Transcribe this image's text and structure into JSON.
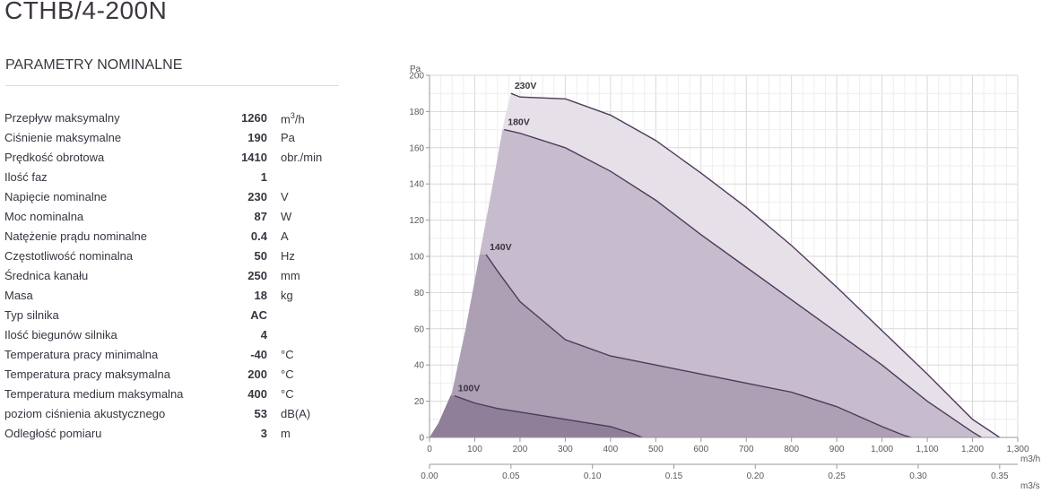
{
  "product": {
    "title": "CTHB/4-200N"
  },
  "section": {
    "title": "PARAMETRY NOMINALNE"
  },
  "params": [
    {
      "label": "Przepływ maksymalny",
      "value": "1260",
      "unit": "m3/h"
    },
    {
      "label": "Ciśnienie maksymalne",
      "value": "190",
      "unit": "Pa"
    },
    {
      "label": "Prędkość obrotowa",
      "value": "1410",
      "unit": "obr./min"
    },
    {
      "label": "Ilość faz",
      "value": "1",
      "unit": ""
    },
    {
      "label": "Napięcie nominalne",
      "value": "230",
      "unit": "V"
    },
    {
      "label": "Moc nominalna",
      "value": "87",
      "unit": "W"
    },
    {
      "label": "Natężenie prądu nominalne",
      "value": "0.4",
      "unit": "A"
    },
    {
      "label": "Częstotliwość nominalna",
      "value": "50",
      "unit": "Hz"
    },
    {
      "label": "Średnica kanału",
      "value": "250",
      "unit": "mm"
    },
    {
      "label": "Masa",
      "value": "18",
      "unit": "kg"
    },
    {
      "label": "Typ silnika",
      "value": "AC",
      "unit": ""
    },
    {
      "label": "Ilość biegunów silnika",
      "value": "4",
      "unit": ""
    },
    {
      "label": "Temperatura pracy minimalna",
      "value": "-40",
      "unit": "°C"
    },
    {
      "label": "Temperatura pracy maksymalna",
      "value": "200",
      "unit": "°C"
    },
    {
      "label": "Temperatura medium maksymalna",
      "value": "400",
      "unit": "°C"
    },
    {
      "label": "poziom ciśnienia akustycznego",
      "value": "53",
      "unit": "dB(A)"
    },
    {
      "label": "Odległość pomiaru",
      "value": "3",
      "unit": "m"
    }
  ],
  "chart_data": {
    "type": "area",
    "ylabel": "Pa",
    "xlabel": "m3/h",
    "x2label": "m3/s",
    "xlim": [
      0,
      1300
    ],
    "ylim": [
      0,
      200
    ],
    "xticks": [
      0,
      100,
      200,
      300,
      400,
      500,
      600,
      700,
      800,
      900,
      1000,
      1100,
      1200,
      1300
    ],
    "xtick_labels": [
      "0",
      "100",
      "200",
      "300",
      "400",
      "500",
      "600",
      "700",
      "800",
      "900",
      "1,000",
      "1,100",
      "1,200",
      "1,300"
    ],
    "yticks": [
      0,
      20,
      40,
      60,
      80,
      100,
      120,
      140,
      160,
      180,
      200
    ],
    "x2ticks": [
      0,
      0.05,
      0.1,
      0.15,
      0.2,
      0.25,
      0.3,
      0.35
    ],
    "x2tick_labels": [
      "0.00",
      "0.05",
      "0.10",
      "0.15",
      "0.20",
      "0.25",
      "0.30",
      "0.35"
    ],
    "grid": true,
    "colors": {
      "grid": "#d9d9d9",
      "line": "#4e3a5a",
      "text": "#5a5a5a",
      "fill": "#b3a5b9"
    },
    "series": [
      {
        "name": "230V",
        "x": [
          180,
          200,
          300,
          400,
          500,
          600,
          700,
          800,
          900,
          1000,
          1100,
          1200,
          1260
        ],
        "y": [
          190,
          188,
          187,
          178,
          164,
          146,
          127,
          106,
          83,
          59,
          35,
          10,
          0
        ]
      },
      {
        "name": "180V",
        "x": [
          165,
          200,
          300,
          400,
          500,
          600,
          700,
          800,
          900,
          1000,
          1100,
          1200,
          1220
        ],
        "y": [
          170,
          168,
          160,
          147,
          131,
          112,
          94,
          76,
          58,
          40,
          20,
          3,
          0
        ]
      },
      {
        "name": "140V",
        "x": [
          125,
          150,
          200,
          300,
          400,
          500,
          600,
          700,
          800,
          900,
          1000,
          1050,
          1065
        ],
        "y": [
          101,
          92,
          75,
          54,
          45,
          40,
          35,
          30,
          25,
          17,
          6,
          1,
          0
        ]
      },
      {
        "name": "100V",
        "x": [
          55,
          100,
          150,
          200,
          300,
          400,
          450,
          470
        ],
        "y": [
          23,
          19,
          16,
          14,
          10,
          6,
          2,
          0
        ]
      }
    ],
    "min_boundary": {
      "x": [
        0,
        20,
        50,
        80,
        110,
        140,
        165,
        180
      ],
      "y": [
        0,
        8,
        25,
        60,
        100,
        140,
        175,
        190
      ]
    }
  }
}
